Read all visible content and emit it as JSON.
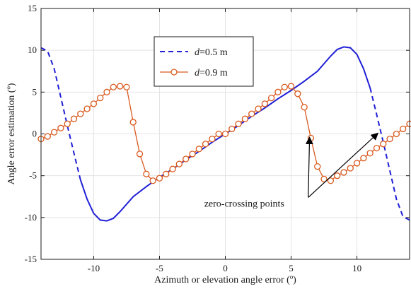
{
  "chart_data": {
    "type": "line",
    "title": "",
    "xlabel": "Azimuth or elevation angle error (º)",
    "ylabel": "Angle error estimation (º)",
    "xlim": [
      -14,
      14
    ],
    "ylim": [
      -15,
      15
    ],
    "xticks": [
      -10,
      -5,
      0,
      5,
      10
    ],
    "yticks": [
      -15,
      -10,
      -5,
      0,
      5,
      10,
      15
    ],
    "xtick_labels": [
      "-10",
      "-5",
      "0",
      "5",
      "10"
    ],
    "ytick_labels": [
      "-15",
      "-10",
      "-5",
      "0",
      "5",
      "10",
      "15"
    ],
    "grid": true,
    "legend_position": "top-center",
    "series": [
      {
        "name": "d=0.5 m",
        "legend_italic": "d",
        "legend_rest": "=0.5 m",
        "color": "#1f1fd6",
        "style": "dashed-solid",
        "solid_range": [
          -10.7,
          10.7
        ],
        "x": [
          -14,
          -13.5,
          -13,
          -12.5,
          -12,
          -11.5,
          -11,
          -10.5,
          -10,
          -9.5,
          -9,
          -8.5,
          -8,
          -7,
          -6,
          -5,
          -4,
          -3,
          -2,
          -1,
          0,
          1,
          2,
          3,
          4,
          5,
          6,
          7,
          8,
          8.5,
          9,
          9.5,
          10,
          10.5,
          11,
          11.5,
          12,
          12.5,
          13,
          13.5,
          14
        ],
        "y": [
          10.3,
          9.9,
          7.8,
          4.4,
          1.0,
          -2.3,
          -5.5,
          -7.8,
          -9.5,
          -10.3,
          -10.4,
          -10.1,
          -9.3,
          -7.5,
          -6.3,
          -5.2,
          -4.2,
          -3.1,
          -2.1,
          -1.0,
          0.0,
          1.0,
          2.1,
          3.1,
          4.2,
          5.2,
          6.3,
          7.5,
          9.3,
          10.1,
          10.4,
          10.3,
          9.5,
          7.8,
          5.5,
          2.3,
          -1.0,
          -4.4,
          -7.8,
          -9.9,
          -10.3
        ]
      },
      {
        "name": "d=0.9 m",
        "legend_italic": "d",
        "legend_rest": "=0.9 m",
        "color": "#d95a1e",
        "style": "solid-markers",
        "x": [
          -14,
          -13.5,
          -13,
          -12.5,
          -12,
          -11.5,
          -11,
          -10.5,
          -10,
          -9.5,
          -9,
          -8.5,
          -8,
          -7.5,
          -7,
          -6.5,
          -6,
          -5.5,
          -5,
          -4.5,
          -4,
          -3.5,
          -3,
          -2.5,
          -2,
          -1.5,
          -1,
          -0.5,
          0,
          0.5,
          1,
          1.5,
          2,
          2.5,
          3,
          3.5,
          4,
          4.5,
          5,
          5.5,
          6,
          6.5,
          7,
          7.5,
          8,
          8.5,
          9,
          9.5,
          10,
          10.5,
          11,
          11.5,
          12,
          12.5,
          13,
          13.5,
          14
        ],
        "y": [
          -0.6,
          -0.3,
          0.2,
          0.7,
          1.2,
          1.8,
          2.4,
          3.0,
          3.6,
          4.3,
          5.0,
          5.6,
          5.7,
          5.6,
          1.4,
          -2.4,
          -4.8,
          -5.6,
          -5.3,
          -4.8,
          -4.2,
          -3.6,
          -3.0,
          -2.4,
          -1.8,
          -1.2,
          -0.6,
          0.0,
          0.0,
          0.6,
          1.2,
          1.8,
          2.4,
          3.0,
          3.6,
          4.3,
          5.0,
          5.6,
          5.7,
          4.8,
          3.2,
          -0.5,
          -3.9,
          -5.4,
          -5.6,
          -5.0,
          -4.6,
          -4.1,
          -3.5,
          -2.9,
          -2.3,
          -1.7,
          -1.2,
          -0.6,
          0.0,
          0.6,
          1.2
        ]
      }
    ],
    "annotation": {
      "text": "zero-crossing points",
      "text_at": [
        -1.6,
        -8.7
      ],
      "arrow_tail": [
        6.3,
        -7.6
      ],
      "arrow_heads": [
        [
          6.4,
          -0.4
        ],
        [
          11.6,
          0.1
        ]
      ]
    }
  }
}
